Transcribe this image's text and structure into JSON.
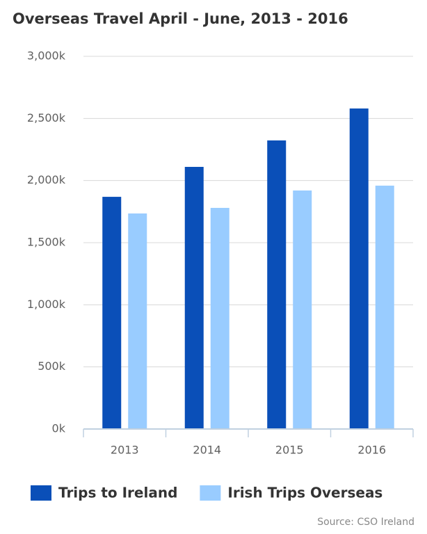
{
  "chart_data": {
    "type": "bar",
    "title": "Overseas Travel April - June, 2013 - 2016",
    "categories": [
      "2013",
      "2014",
      "2015",
      "2016"
    ],
    "series": [
      {
        "name": "Trips to Ireland",
        "color": "#0a4fb8",
        "values": [
          1869,
          2110,
          2323,
          2580
        ]
      },
      {
        "name": "Irish Trips Overseas",
        "color": "#99ccff",
        "values": [
          1735,
          1780,
          1920,
          1959
        ]
      }
    ],
    "ylim": [
      0,
      3000
    ],
    "yticks": [
      {
        "value": 0,
        "label": "0k"
      },
      {
        "value": 500,
        "label": "500k"
      },
      {
        "value": 1000,
        "label": "1,000k"
      },
      {
        "value": 1500,
        "label": "1,500k"
      },
      {
        "value": 2000,
        "label": "2,000k"
      },
      {
        "value": 2500,
        "label": "2,500k"
      },
      {
        "value": 3000,
        "label": "3,000k"
      }
    ],
    "grid": true,
    "legend": "bottom",
    "source": "Source: CSO Ireland"
  }
}
